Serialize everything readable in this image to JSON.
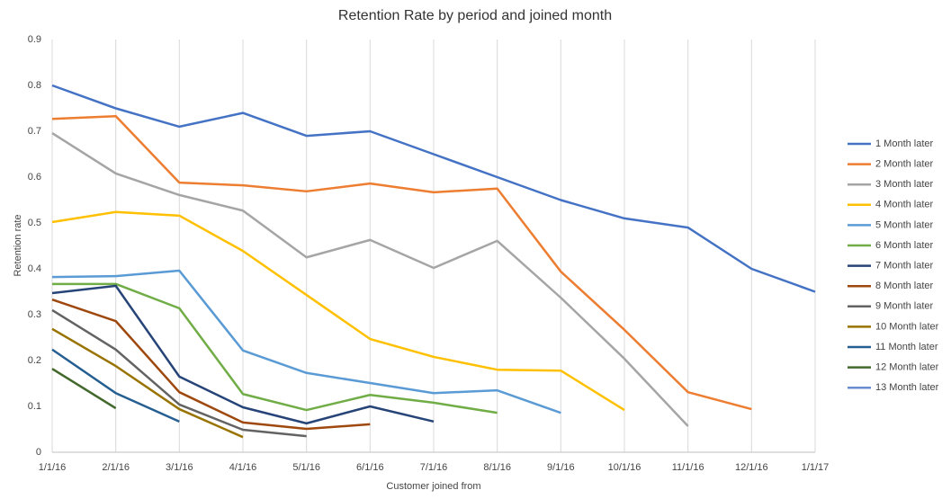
{
  "chart_data": {
    "type": "line",
    "title": "Retention Rate  by period and joined month",
    "x_label": "Customer joined from",
    "y_label": "Retention rate",
    "categories": [
      "1/1/16",
      "2/1/16",
      "3/1/16",
      "4/1/16",
      "5/1/16",
      "6/1/16",
      "7/1/16",
      "8/1/16",
      "9/1/16",
      "10/1/16",
      "11/1/16",
      "12/1/16",
      "1/1/17"
    ],
    "ylim": [
      0,
      0.9
    ],
    "yticks": [
      0,
      0.1,
      0.2,
      0.3,
      0.4,
      0.5,
      0.6,
      0.7,
      0.8,
      0.9
    ],
    "grid": "vertical",
    "legend": "right",
    "series": [
      {
        "name": "1 Month later",
        "color": "#4472c4",
        "values": [
          0.8,
          0.75,
          0.71,
          0.74,
          0.69,
          0.7,
          0.65,
          0.6,
          0.55,
          0.51,
          0.49,
          0.4,
          0.35
        ]
      },
      {
        "name": "2 Month later",
        "color": "#ed7d31",
        "values": [
          0.727,
          0.733,
          0.588,
          0.582,
          0.569,
          0.586,
          0.567,
          0.575,
          0.394,
          0.267,
          0.131,
          0.094,
          null
        ]
      },
      {
        "name": "3 Month later",
        "color": "#a5a5a5",
        "values": [
          0.696,
          0.608,
          0.561,
          0.527,
          0.425,
          0.463,
          0.402,
          0.461,
          0.337,
          0.204,
          0.057,
          null,
          null
        ]
      },
      {
        "name": "4 Month later",
        "color": "#ffc000",
        "values": [
          0.502,
          0.524,
          0.516,
          0.439,
          0.343,
          0.247,
          0.208,
          0.18,
          0.178,
          0.092,
          null,
          null,
          null
        ]
      },
      {
        "name": "5 Month later",
        "color": "#5b9bd5",
        "values": [
          0.382,
          0.384,
          0.396,
          0.222,
          0.173,
          0.151,
          0.129,
          0.135,
          0.086,
          null,
          null,
          null,
          null
        ]
      },
      {
        "name": "6 Month later",
        "color": "#70ad47",
        "values": [
          0.367,
          0.367,
          0.314,
          0.127,
          0.092,
          0.125,
          0.108,
          0.086,
          null,
          null,
          null,
          null,
          null
        ]
      },
      {
        "name": "7 Month later",
        "color": "#264478",
        "values": [
          0.347,
          0.363,
          0.165,
          0.098,
          0.063,
          0.1,
          0.067,
          null,
          null,
          null,
          null,
          null,
          null
        ]
      },
      {
        "name": "8 Month later",
        "color": "#9e480e",
        "values": [
          0.333,
          0.286,
          0.131,
          0.065,
          0.051,
          0.061,
          null,
          null,
          null,
          null,
          null,
          null,
          null
        ]
      },
      {
        "name": "9 Month later",
        "color": "#636363",
        "values": [
          0.31,
          0.224,
          0.104,
          0.049,
          0.035,
          null,
          null,
          null,
          null,
          null,
          null,
          null,
          null
        ]
      },
      {
        "name": "10 Month later",
        "color": "#997300",
        "values": [
          0.269,
          0.188,
          0.094,
          0.033,
          null,
          null,
          null,
          null,
          null,
          null,
          null,
          null,
          null
        ]
      },
      {
        "name": "11 Month later",
        "color": "#255e91",
        "values": [
          0.224,
          0.129,
          0.067,
          null,
          null,
          null,
          null,
          null,
          null,
          null,
          null,
          null,
          null
        ]
      },
      {
        "name": "12 Month later",
        "color": "#43682b",
        "values": [
          0.182,
          0.096,
          null,
          null,
          null,
          null,
          null,
          null,
          null,
          null,
          null,
          null,
          null
        ]
      },
      {
        "name": "13 Month later",
        "color": "#698ed0",
        "values": [
          null,
          null,
          null,
          null,
          null,
          null,
          null,
          null,
          null,
          null,
          null,
          null,
          null
        ]
      }
    ]
  }
}
